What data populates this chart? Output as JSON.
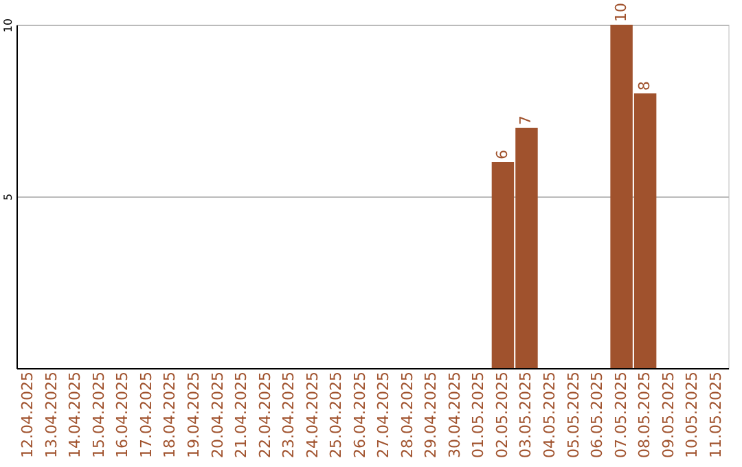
{
  "chart_data": {
    "type": "bar",
    "categories": [
      "12.04.2025",
      "13.04.2025",
      "14.04.2025",
      "15.04.2025",
      "16.04.2025",
      "17.04.2025",
      "18.04.2025",
      "19.04.2025",
      "20.04.2025",
      "21.04.2025",
      "22.04.2025",
      "23.04.2025",
      "24.04.2025",
      "25.04.2025",
      "26.04.2025",
      "27.04.2025",
      "28.04.2025",
      "29.04.2025",
      "30.04.2025",
      "01.05.2025",
      "02.05.2025",
      "03.05.2025",
      "04.05.2025",
      "05.05.2025",
      "06.05.2025",
      "07.05.2025",
      "08.05.2025",
      "09.05.2025",
      "10.05.2025",
      "11.05.2025"
    ],
    "values": [
      0,
      0,
      0,
      0,
      0,
      0,
      0,
      0,
      0,
      0,
      0,
      0,
      0,
      0,
      0,
      0,
      0,
      0,
      0,
      0,
      6,
      7,
      0,
      0,
      0,
      10,
      8,
      0,
      0,
      0
    ],
    "value_labels": [
      null,
      null,
      null,
      null,
      null,
      null,
      null,
      null,
      null,
      null,
      null,
      null,
      null,
      null,
      null,
      null,
      null,
      null,
      null,
      null,
      "6",
      "7",
      null,
      null,
      null,
      "10",
      "8",
      null,
      null,
      null
    ],
    "color": "#a0522d",
    "ylim": [
      0,
      10
    ],
    "yticks": [
      5,
      10
    ],
    "grid": "y"
  }
}
